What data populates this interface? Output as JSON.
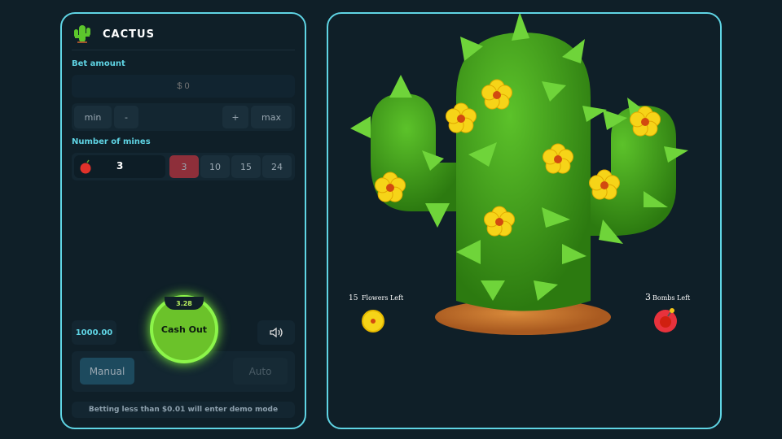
{
  "app": {
    "title": "CACTUS"
  },
  "bet": {
    "label": "Bet amount",
    "placeholder": "$ 0",
    "min": "min",
    "minus": "-",
    "plus": "+",
    "max": "max"
  },
  "mines": {
    "label": "Number of mines",
    "value": "3",
    "options": [
      "3",
      "10",
      "15",
      "24"
    ],
    "selected": "3"
  },
  "balance": "1000.00",
  "cashout": {
    "label": "Cash Out",
    "multiplier": "3.28"
  },
  "modes": {
    "manual": "Manual",
    "auto": "Auto",
    "active": "Manual"
  },
  "notice": "Betting less than $0.01 will enter demo mode",
  "game": {
    "flowers_count": "15",
    "flowers_label": "Flowers Left",
    "bombs_count": "3",
    "bombs_label": "Bombs Left",
    "colors": {
      "cactus": "#3f9e1a",
      "flower": "#f6d418",
      "bomb": "#e0242c",
      "soil": "#c9782e"
    }
  }
}
